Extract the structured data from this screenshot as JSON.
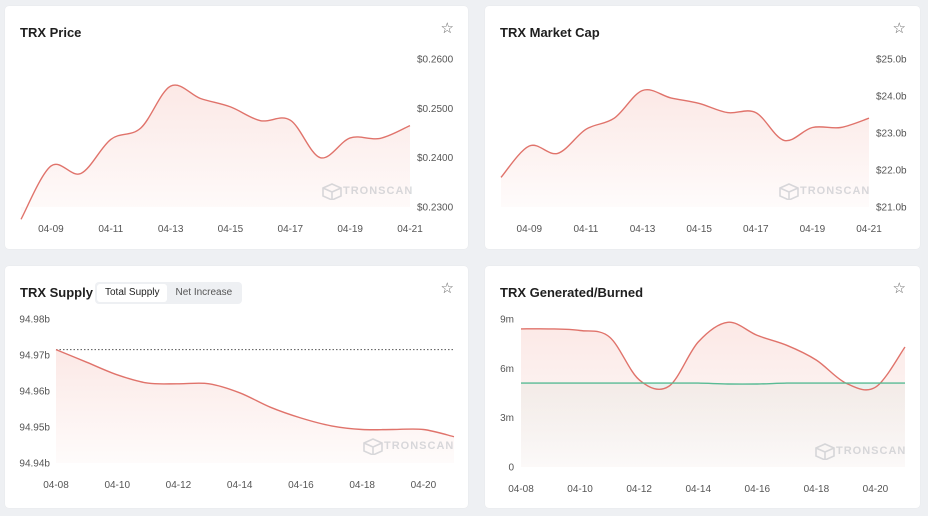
{
  "watermark": "TRONSCAN",
  "colors": {
    "line": "#e0736b",
    "fill": "#fbe6e3",
    "green": "#59bb94"
  },
  "cards": {
    "price": {
      "title": "TRX Price"
    },
    "mcap": {
      "title": "TRX Market Cap"
    },
    "supply": {
      "title": "TRX Supply",
      "toggle": [
        "Total Supply",
        "Net Increase"
      ],
      "toggle_active": 0
    },
    "gen": {
      "title": "TRX Generated/Burned"
    }
  },
  "chart_data": [
    {
      "type": "line",
      "title": "TRX Price",
      "x": [
        "04-08",
        "04-09",
        "04-10",
        "04-11",
        "04-12",
        "04-13",
        "04-14",
        "04-15",
        "04-16",
        "04-17",
        "04-18",
        "04-19",
        "04-20",
        "04-21"
      ],
      "xticks": [
        "04-09",
        "04-11",
        "04-13",
        "04-15",
        "04-17",
        "04-19",
        "04-21"
      ],
      "yticks": [
        "$0.2300",
        "$0.2400",
        "$0.2500",
        "$0.2600"
      ],
      "ylim": [
        0.23,
        0.26
      ],
      "yaxis": "right",
      "series": [
        {
          "values": [
            0.2275,
            0.2383,
            0.2368,
            0.2437,
            0.246,
            0.2545,
            0.252,
            0.2503,
            0.2475,
            0.2476,
            0.24,
            0.244,
            0.2439,
            0.2465
          ]
        }
      ]
    },
    {
      "type": "line",
      "title": "TRX Market Cap",
      "x": [
        "04-08",
        "04-09",
        "04-10",
        "04-11",
        "04-12",
        "04-13",
        "04-14",
        "04-15",
        "04-16",
        "04-17",
        "04-18",
        "04-19",
        "04-20",
        "04-21"
      ],
      "xticks": [
        "04-09",
        "04-11",
        "04-13",
        "04-15",
        "04-17",
        "04-19",
        "04-21"
      ],
      "yticks": [
        "$21.0b",
        "$22.0b",
        "$23.0b",
        "$24.0b",
        "$25.0b"
      ],
      "ylim": [
        21.0,
        25.0
      ],
      "yaxis": "right",
      "series": [
        {
          "values": [
            21.8,
            22.65,
            22.45,
            23.1,
            23.4,
            24.15,
            23.95,
            23.8,
            23.55,
            23.55,
            22.8,
            23.15,
            23.15,
            23.4
          ]
        }
      ]
    },
    {
      "type": "line",
      "title": "TRX Supply",
      "x": [
        "04-08",
        "04-09",
        "04-10",
        "04-11",
        "04-12",
        "04-13",
        "04-14",
        "04-15",
        "04-16",
        "04-17",
        "04-18",
        "04-19",
        "04-20",
        "04-21"
      ],
      "xticks": [
        "04-08",
        "04-10",
        "04-12",
        "04-14",
        "04-16",
        "04-18",
        "04-20"
      ],
      "yticks": [
        "94.94b",
        "94.95b",
        "94.96b",
        "94.97b",
        "94.98b"
      ],
      "ylim": [
        94.94,
        94.98
      ],
      "yaxis": "left",
      "reference_line": 94.9715,
      "series": [
        {
          "values": [
            94.9715,
            94.968,
            94.9645,
            94.9622,
            94.962,
            94.962,
            94.9595,
            94.9555,
            94.9525,
            94.9503,
            94.9493,
            94.9493,
            94.9493,
            94.9473
          ]
        }
      ]
    },
    {
      "type": "line",
      "title": "TRX Generated/Burned",
      "x": [
        "04-08",
        "04-09",
        "04-10",
        "04-11",
        "04-12",
        "04-13",
        "04-14",
        "04-15",
        "04-16",
        "04-17",
        "04-18",
        "04-19",
        "04-20",
        "04-21"
      ],
      "xticks": [
        "04-08",
        "04-10",
        "04-12",
        "04-14",
        "04-16",
        "04-18",
        "04-20"
      ],
      "yticks": [
        "0",
        "3m",
        "6m",
        "9m"
      ],
      "ylim": [
        0,
        9
      ],
      "yaxis": "left",
      "series": [
        {
          "values": [
            8.4,
            8.4,
            8.3,
            7.9,
            5.3,
            4.9,
            7.6,
            8.8,
            8.0,
            7.4,
            6.5,
            5.1,
            4.85,
            7.3
          ]
        },
        {
          "values": [
            5.1,
            5.1,
            5.1,
            5.1,
            5.1,
            5.1,
            5.1,
            5.05,
            5.05,
            5.1,
            5.1,
            5.1,
            5.1,
            5.1
          ]
        }
      ]
    }
  ]
}
